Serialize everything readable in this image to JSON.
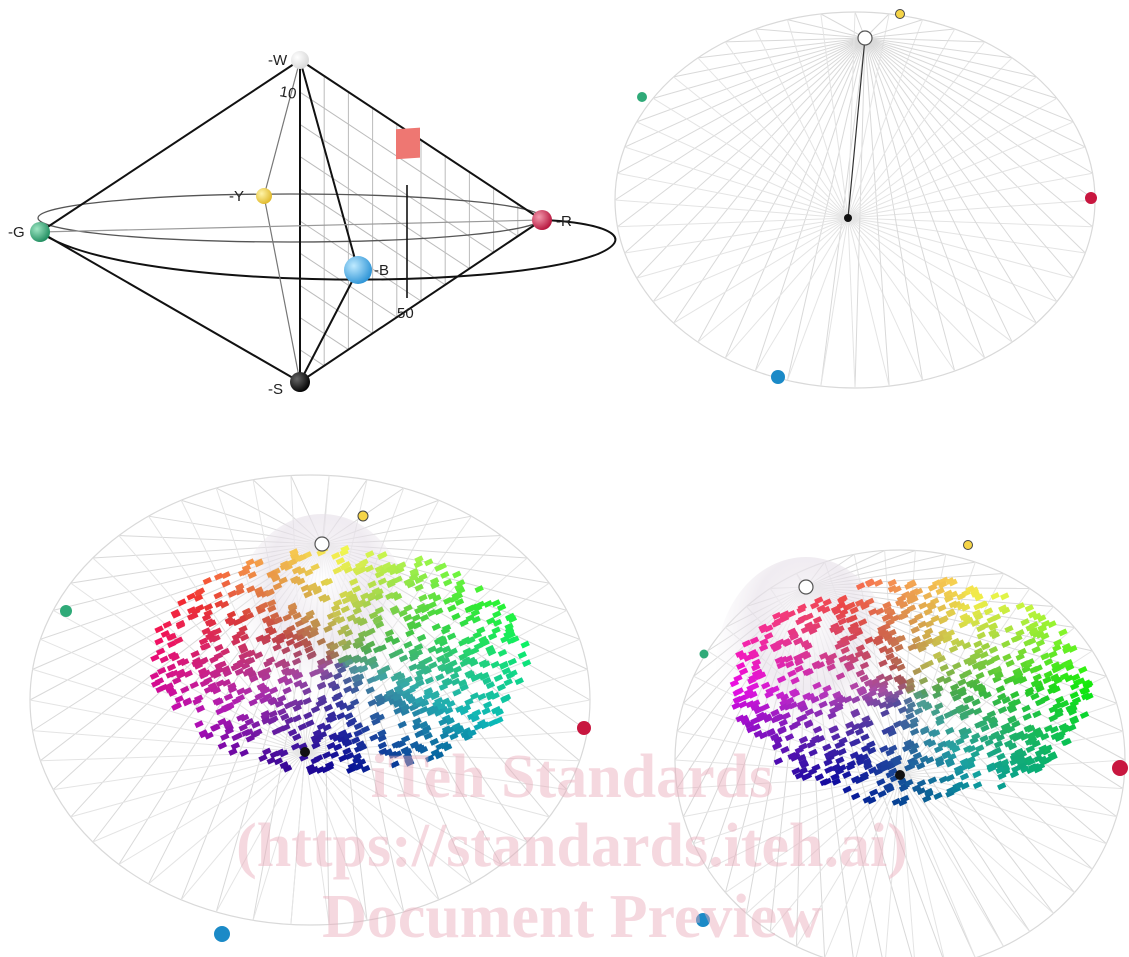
{
  "diagram": {
    "labels": {
      "white": "-W",
      "yellow": "-Y",
      "green": "-G",
      "red": "-R",
      "blue": "-B",
      "black": "-S"
    },
    "scale_top": "10",
    "scale_bottom": "50",
    "sample_color": "#ee7772"
  },
  "colors": {
    "white": "#f4f4f4",
    "yellow": "#f5d447",
    "green": "#2faa78",
    "red": "#c8163f",
    "blue": "#1b8ac7",
    "black": "#111111",
    "wire": "#d9d9d9"
  },
  "watermark": {
    "line1": "iTeh Standards",
    "line2": "(https://standards.iteh.ai)",
    "line3": "Document Preview"
  }
}
